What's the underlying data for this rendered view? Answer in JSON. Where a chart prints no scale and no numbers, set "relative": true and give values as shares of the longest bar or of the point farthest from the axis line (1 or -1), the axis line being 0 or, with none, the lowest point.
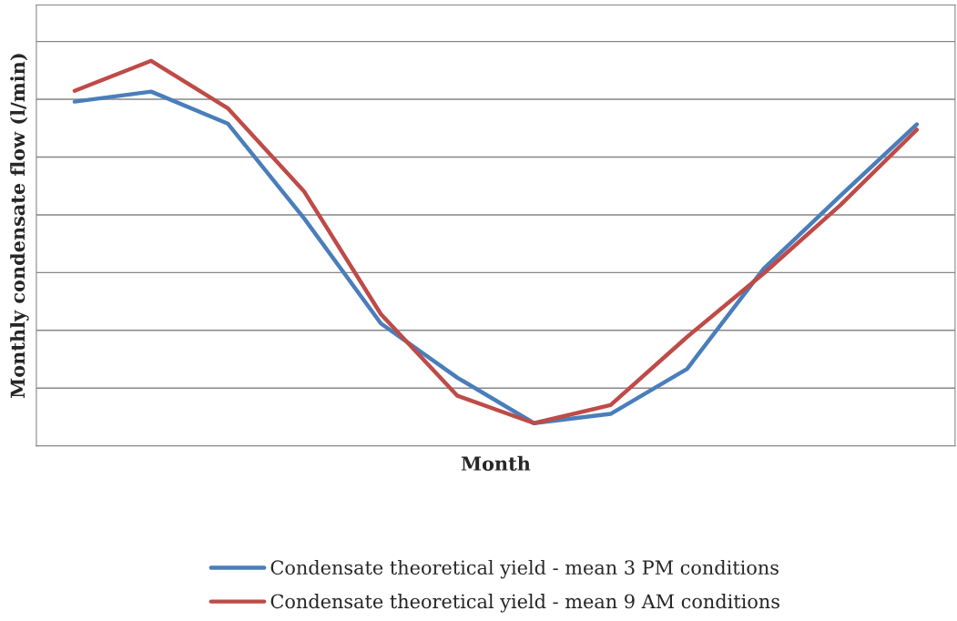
{
  "chart_data": {
    "type": "line",
    "relative": true,
    "xlabel": "Month",
    "ylabel": "Monthly condensate flow (l/min)",
    "categories": [
      null,
      null,
      null,
      null,
      null,
      null,
      null,
      null,
      null,
      null,
      null,
      null
    ],
    "series": [
      {
        "name": "Condensate theoretical yield - mean 3 PM conditions",
        "color": "#4a7ebb",
        "values": [
          0.894,
          0.92,
          0.837,
          0.59,
          0.318,
          0.177,
          0.059,
          0.083,
          0.2,
          0.46,
          0.649,
          0.835
        ]
      },
      {
        "name": "Condensate theoretical yield - mean 9 AM conditions",
        "color": "#be4b48",
        "values": [
          0.922,
          1.0,
          0.877,
          0.66,
          0.342,
          0.13,
          0.059,
          0.106,
          0.283,
          0.448,
          0.625,
          0.821
        ]
      }
    ],
    "grid": "y",
    "legend": "bottom",
    "marker": "none",
    "line_style": "solid",
    "tick_labels": false
  }
}
